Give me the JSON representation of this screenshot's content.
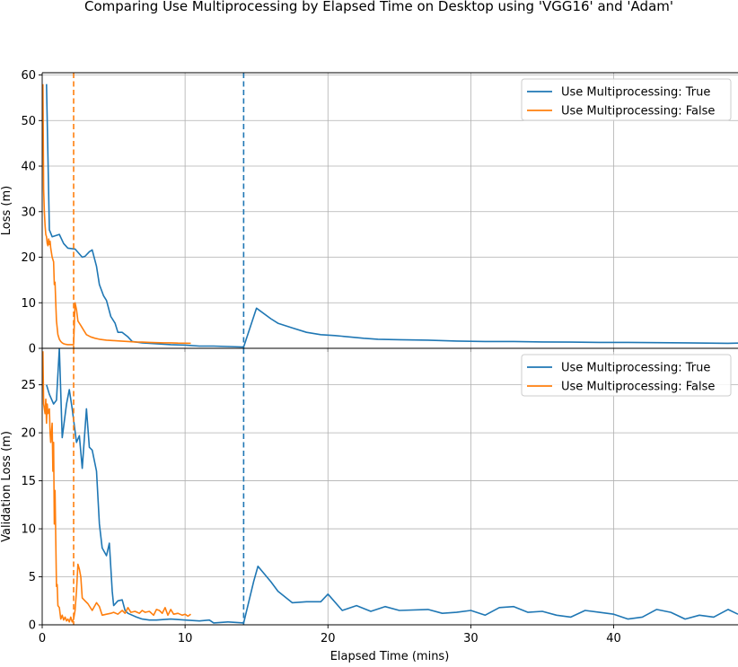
{
  "chart_data": {
    "type": "line",
    "title": "Comparing Use Multiprocessing by Elapsed Time on Desktop using 'VGG16' and 'Adam'",
    "xlabel": "Elapsed Time (mins)",
    "xlim": [
      0,
      48.7
    ],
    "xticks": [
      0,
      10,
      20,
      30,
      40
    ],
    "grid": true,
    "colors": {
      "true": "#1f77b4",
      "false": "#ff7f0e"
    },
    "vlines": [
      {
        "x": 2.2,
        "series": "Use Multiprocessing: False",
        "color": "#ff7f0e",
        "style": "dashed"
      },
      {
        "x": 14.1,
        "series": "Use Multiprocessing: True",
        "color": "#1f77b4",
        "style": "dashed"
      }
    ],
    "panels": [
      {
        "ylabel": "Loss (m)",
        "ylim": [
          0,
          60.5
        ],
        "yticks": [
          0,
          10,
          20,
          30,
          40,
          50,
          60
        ],
        "legend_position": "upper right",
        "series": [
          {
            "name": "Use Multiprocessing: True",
            "color": "#1f77b4",
            "points": [
              [
                0.3,
                58
              ],
              [
                0.5,
                26
              ],
              [
                0.7,
                24.5
              ],
              [
                1.2,
                25
              ],
              [
                1.5,
                23
              ],
              [
                1.8,
                22
              ],
              [
                2.3,
                21.8
              ],
              [
                2.8,
                20
              ],
              [
                3,
                20.2
              ],
              [
                3.3,
                21.2
              ],
              [
                3.5,
                21.6
              ],
              [
                3.8,
                18
              ],
              [
                4,
                14
              ],
              [
                4.3,
                11.5
              ],
              [
                4.5,
                10.5
              ],
              [
                4.8,
                7
              ],
              [
                5.1,
                5.5
              ],
              [
                5.3,
                3.5
              ],
              [
                5.6,
                3.5
              ],
              [
                6,
                2.5
              ],
              [
                6.3,
                1.5
              ],
              [
                7,
                1.2
              ],
              [
                8,
                1
              ],
              [
                9,
                0.8
              ],
              [
                10,
                0.7
              ],
              [
                11,
                0.5
              ],
              [
                12,
                0.5
              ],
              [
                13,
                0.4
              ],
              [
                14,
                0.3
              ],
              [
                14.1,
                0.3
              ],
              [
                15,
                8.8
              ],
              [
                16,
                6.5
              ],
              [
                16.5,
                5.5
              ],
              [
                17.5,
                4.5
              ],
              [
                18.5,
                3.5
              ],
              [
                19.5,
                3
              ],
              [
                20.5,
                2.8
              ],
              [
                21.5,
                2.5
              ],
              [
                22.5,
                2.2
              ],
              [
                23.5,
                2
              ],
              [
                25,
                1.9
              ],
              [
                27,
                1.8
              ],
              [
                29,
                1.6
              ],
              [
                31,
                1.5
              ],
              [
                33,
                1.5
              ],
              [
                35,
                1.4
              ],
              [
                37,
                1.35
              ],
              [
                39,
                1.3
              ],
              [
                41,
                1.3
              ],
              [
                43,
                1.25
              ],
              [
                45,
                1.2
              ],
              [
                46.5,
                1.15
              ],
              [
                48,
                1.1
              ],
              [
                48.7,
                1.15
              ]
            ]
          },
          {
            "name": "Use Multiprocessing: False",
            "color": "#ff7f0e",
            "points": [
              [
                0.05,
                58
              ],
              [
                0.1,
                35
              ],
              [
                0.15,
                30
              ],
              [
                0.2,
                27
              ],
              [
                0.25,
                25
              ],
              [
                0.3,
                24.5
              ],
              [
                0.35,
                23
              ],
              [
                0.4,
                22.5
              ],
              [
                0.45,
                24
              ],
              [
                0.5,
                22.8
              ],
              [
                0.55,
                23.5
              ],
              [
                0.6,
                22
              ],
              [
                0.7,
                20
              ],
              [
                0.8,
                19
              ],
              [
                0.85,
                14
              ],
              [
                0.9,
                14.5
              ],
              [
                0.95,
                10
              ],
              [
                1,
                6
              ],
              [
                1.1,
                3
              ],
              [
                1.2,
                2
              ],
              [
                1.3,
                1.5
              ],
              [
                1.4,
                1.2
              ],
              [
                1.5,
                1
              ],
              [
                1.6,
                0.9
              ],
              [
                1.8,
                0.8
              ],
              [
                2,
                0.8
              ],
              [
                2.2,
                0.8
              ],
              [
                2.3,
                10
              ],
              [
                2.4,
                8.5
              ],
              [
                2.5,
                6
              ],
              [
                2.7,
                5
              ],
              [
                2.9,
                4
              ],
              [
                3.1,
                3
              ],
              [
                3.4,
                2.5
              ],
              [
                3.7,
                2.2
              ],
              [
                4,
                2
              ],
              [
                4.5,
                1.8
              ],
              [
                5,
                1.7
              ],
              [
                5.5,
                1.6
              ],
              [
                6,
                1.5
              ],
              [
                6.5,
                1.4
              ],
              [
                7,
                1.35
              ],
              [
                7.5,
                1.3
              ],
              [
                8,
                1.25
              ],
              [
                8.5,
                1.2
              ],
              [
                9,
                1.2
              ],
              [
                9.5,
                1.15
              ],
              [
                10.4,
                1.1
              ]
            ]
          }
        ]
      },
      {
        "ylabel": "Validation Loss (m)",
        "ylim": [
          0,
          28.8
        ],
        "yticks": [
          0,
          5,
          10,
          15,
          20,
          25
        ],
        "legend_position": "upper right",
        "series": [
          {
            "name": "Use Multiprocessing: True",
            "color": "#1f77b4",
            "points": [
              [
                0.3,
                25
              ],
              [
                0.5,
                24
              ],
              [
                0.8,
                23
              ],
              [
                1,
                23.4
              ],
              [
                1.2,
                28.8
              ],
              [
                1.4,
                19.5
              ],
              [
                1.7,
                23
              ],
              [
                1.9,
                24.5
              ],
              [
                2.1,
                22.5
              ],
              [
                2.4,
                19
              ],
              [
                2.6,
                19.7
              ],
              [
                2.8,
                16.3
              ],
              [
                3.1,
                22.5
              ],
              [
                3.3,
                18.5
              ],
              [
                3.5,
                18.2
              ],
              [
                3.8,
                16
              ],
              [
                4,
                10.5
              ],
              [
                4.2,
                8
              ],
              [
                4.5,
                7.2
              ],
              [
                4.7,
                8.5
              ],
              [
                4.9,
                3.5
              ],
              [
                5,
                2
              ],
              [
                5.3,
                2.5
              ],
              [
                5.6,
                2.6
              ],
              [
                5.8,
                1.5
              ],
              [
                6,
                1.2
              ],
              [
                6.3,
                1
              ],
              [
                6.6,
                0.8
              ],
              [
                7,
                0.6
              ],
              [
                7.5,
                0.5
              ],
              [
                8,
                0.5
              ],
              [
                9,
                0.6
              ],
              [
                10,
                0.5
              ],
              [
                11,
                0.4
              ],
              [
                11.7,
                0.5
              ],
              [
                12,
                0.2
              ],
              [
                13,
                0.3
              ],
              [
                13.5,
                0.25
              ],
              [
                14.1,
                0.2
              ],
              [
                14.8,
                4.5
              ],
              [
                15.1,
                6.1
              ],
              [
                16,
                4.5
              ],
              [
                16.5,
                3.5
              ],
              [
                17.5,
                2.3
              ],
              [
                18.5,
                2.4
              ],
              [
                19.5,
                2.4
              ],
              [
                20,
                3.2
              ],
              [
                21,
                1.5
              ],
              [
                22,
                2
              ],
              [
                23,
                1.4
              ],
              [
                24,
                1.9
              ],
              [
                25,
                1.5
              ],
              [
                27,
                1.6
              ],
              [
                28,
                1.2
              ],
              [
                29,
                1.3
              ],
              [
                30,
                1.5
              ],
              [
                31,
                1
              ],
              [
                32,
                1.8
              ],
              [
                33,
                1.9
              ],
              [
                34,
                1.3
              ],
              [
                35,
                1.4
              ],
              [
                36,
                1
              ],
              [
                37,
                0.8
              ],
              [
                38,
                1.5
              ],
              [
                39,
                1.3
              ],
              [
                40,
                1.1
              ],
              [
                41,
                0.6
              ],
              [
                42,
                0.8
              ],
              [
                43,
                1.6
              ],
              [
                44,
                1.3
              ],
              [
                45,
                0.6
              ],
              [
                46,
                1
              ],
              [
                47,
                0.8
              ],
              [
                48,
                1.6
              ],
              [
                48.7,
                1.1
              ]
            ]
          },
          {
            "name": "Use Multiprocessing: False",
            "color": "#ff7f0e",
            "points": [
              [
                0.05,
                28.5
              ],
              [
                0.1,
                23
              ],
              [
                0.2,
                22
              ],
              [
                0.25,
                23.5
              ],
              [
                0.3,
                21
              ],
              [
                0.35,
                23
              ],
              [
                0.4,
                22
              ],
              [
                0.5,
                22.5
              ],
              [
                0.55,
                20
              ],
              [
                0.6,
                19
              ],
              [
                0.7,
                21
              ],
              [
                0.75,
                16
              ],
              [
                0.8,
                19
              ],
              [
                0.85,
                10.5
              ],
              [
                0.9,
                14
              ],
              [
                0.95,
                9
              ],
              [
                1,
                4
              ],
              [
                1.05,
                4.2
              ],
              [
                1.1,
                2
              ],
              [
                1.2,
                1.8
              ],
              [
                1.3,
                0.6
              ],
              [
                1.4,
                1
              ],
              [
                1.5,
                0.5
              ],
              [
                1.6,
                0.8
              ],
              [
                1.7,
                0.4
              ],
              [
                1.8,
                0.6
              ],
              [
                1.9,
                0.3
              ],
              [
                2,
                0.8
              ],
              [
                2.1,
                0.3
              ],
              [
                2.2,
                0.6
              ],
              [
                2.3,
                1.5
              ],
              [
                2.4,
                3.5
              ],
              [
                2.5,
                6.3
              ],
              [
                2.6,
                5.8
              ],
              [
                2.7,
                5
              ],
              [
                2.8,
                2.8
              ],
              [
                3,
                2.5
              ],
              [
                3.2,
                2.2
              ],
              [
                3.5,
                1.5
              ],
              [
                3.8,
                2.3
              ],
              [
                4,
                1.9
              ],
              [
                4.2,
                1
              ],
              [
                4.5,
                1.1
              ],
              [
                4.8,
                1.2
              ],
              [
                5,
                1.3
              ],
              [
                5.3,
                1.1
              ],
              [
                5.6,
                1.5
              ],
              [
                5.8,
                1.2
              ],
              [
                6,
                1.8
              ],
              [
                6.2,
                1.3
              ],
              [
                6.5,
                1.4
              ],
              [
                6.8,
                1.2
              ],
              [
                7,
                1.5
              ],
              [
                7.2,
                1.3
              ],
              [
                7.5,
                1.4
              ],
              [
                7.8,
                1
              ],
              [
                8,
                1.6
              ],
              [
                8.2,
                1.5
              ],
              [
                8.4,
                1.2
              ],
              [
                8.6,
                1.8
              ],
              [
                8.8,
                1
              ],
              [
                9,
                1.6
              ],
              [
                9.2,
                1.1
              ],
              [
                9.5,
                1.2
              ],
              [
                9.8,
                1
              ],
              [
                10,
                1.1
              ],
              [
                10.2,
                0.9
              ],
              [
                10.4,
                1.1
              ]
            ]
          }
        ]
      }
    ]
  }
}
